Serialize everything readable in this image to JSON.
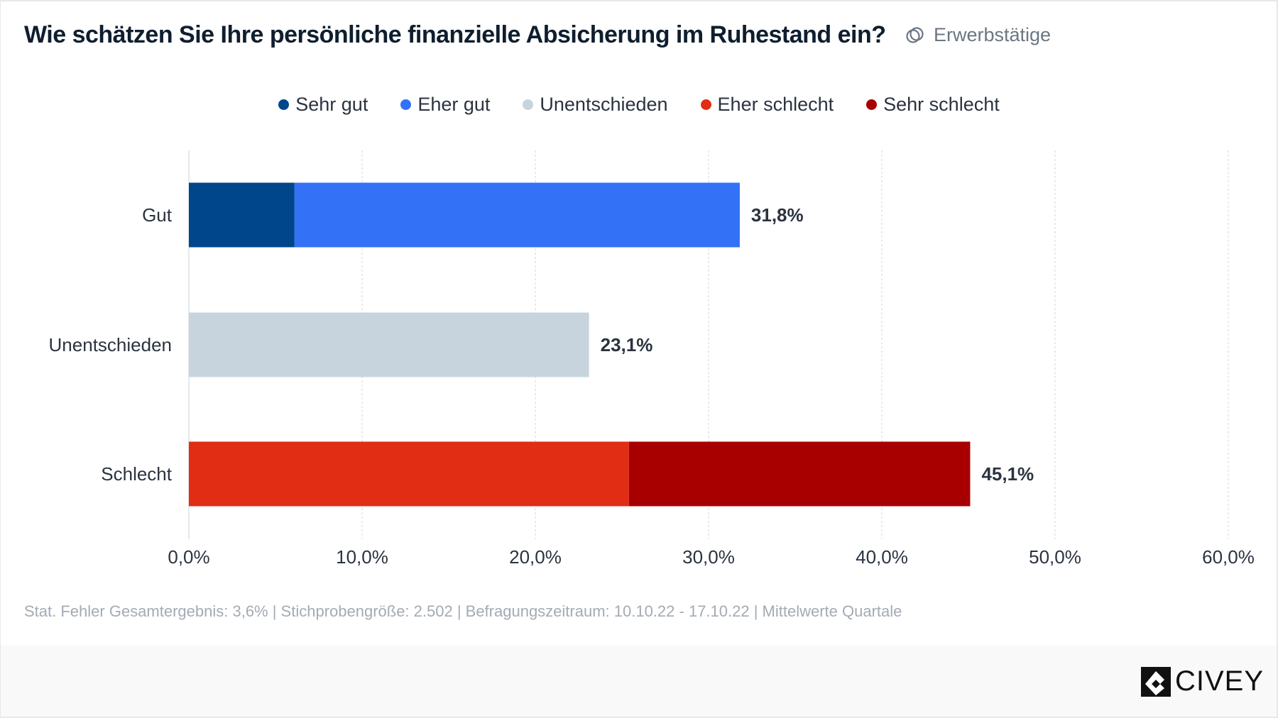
{
  "title": "Wie schätzen Sie Ihre persönliche finanzielle Absicherung im Ruhestand ein?",
  "audience": {
    "label": "Erwerbstätige",
    "icon": "overlapping-circles-icon"
  },
  "footer_note": "Stat. Fehler Gesamtergebnis: 3,6% | Stichprobengröße: 2.502 | Befragungszeitraum: 10.10.22 - 17.10.22 | Mittelwerte Quartale",
  "logo": "CIVEY",
  "chart_data": {
    "type": "bar",
    "orientation": "horizontal",
    "stacked": true,
    "categories": [
      "Gut",
      "Unentschieden",
      "Schlecht"
    ],
    "series": [
      {
        "name": "Sehr gut",
        "color": "#00468b",
        "values": [
          6.1,
          0,
          0
        ]
      },
      {
        "name": "Eher gut",
        "color": "#3371f7",
        "values": [
          25.7,
          0,
          0
        ]
      },
      {
        "name": "Unentschieden",
        "color": "#c8d4dd",
        "values": [
          0,
          23.1,
          0
        ]
      },
      {
        "name": "Eher schlecht",
        "color": "#e02d14",
        "values": [
          0,
          0,
          25.4
        ]
      },
      {
        "name": "Sehr schlecht",
        "color": "#a80000",
        "values": [
          0,
          0,
          19.7
        ]
      }
    ],
    "totals": [
      "31,8%",
      "23,1%",
      "45,1%"
    ],
    "total_values": [
      31.8,
      23.1,
      45.1
    ],
    "xlim": [
      0,
      60
    ],
    "xticks": [
      "0,0%",
      "10,0%",
      "20,0%",
      "30,0%",
      "40,0%",
      "50,0%",
      "60,0%"
    ],
    "grid": true,
    "legend_position": "top"
  }
}
